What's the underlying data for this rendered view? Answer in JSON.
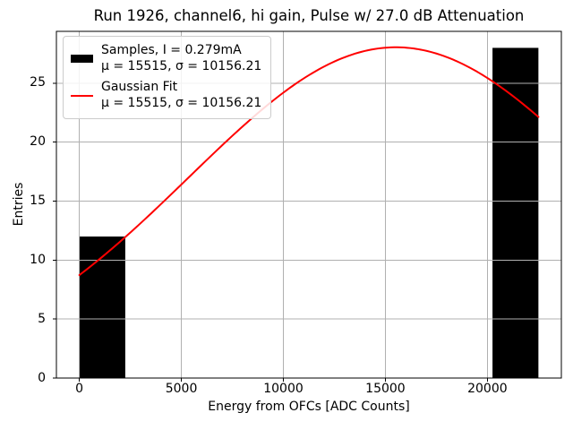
{
  "chart_data": {
    "type": "bar",
    "subtype": "histogram_with_gaussian_fit",
    "title": "Run 1926, channel6, hi gain, Pulse w/ 27.0 dB Attenuation",
    "xlabel": "Energy from OFCs [ADC Counts]",
    "ylabel": "Entries",
    "xlim": [
      -1125,
      23625
    ],
    "ylim": [
      0,
      29.4
    ],
    "xticks": [
      0,
      5000,
      10000,
      15000,
      20000
    ],
    "yticks": [
      0,
      5,
      10,
      15,
      20,
      25
    ],
    "grid": true,
    "legend_position": "upper-left",
    "colors": {
      "bar": "#000000",
      "fit_line": "#ff0000",
      "grid": "#b0b0b0",
      "spine": "#000000",
      "legend_border": "#cccccc",
      "background": "#ffffff"
    },
    "bins": {
      "edges": [
        0,
        2250,
        4500,
        6750,
        9000,
        11250,
        13500,
        15750,
        18000,
        20250,
        22500
      ],
      "counts": [
        12,
        0,
        0,
        0,
        0,
        0,
        0,
        0,
        0,
        28
      ]
    },
    "gaussian_fit": {
      "mu": 15515,
      "sigma": 10156.21,
      "amplitude": 28.05,
      "x_start": 0,
      "x_end": 22500
    },
    "legend": {
      "entries": [
        {
          "swatch": "black-patch",
          "label_line1": "Samples, I = 0.279mA",
          "label_line2": "μ = 15515, σ = 10156.21"
        },
        {
          "swatch": "red-line",
          "label_line1": "Gaussian Fit",
          "label_line2": "μ = 15515, σ = 10156.21"
        }
      ]
    }
  }
}
